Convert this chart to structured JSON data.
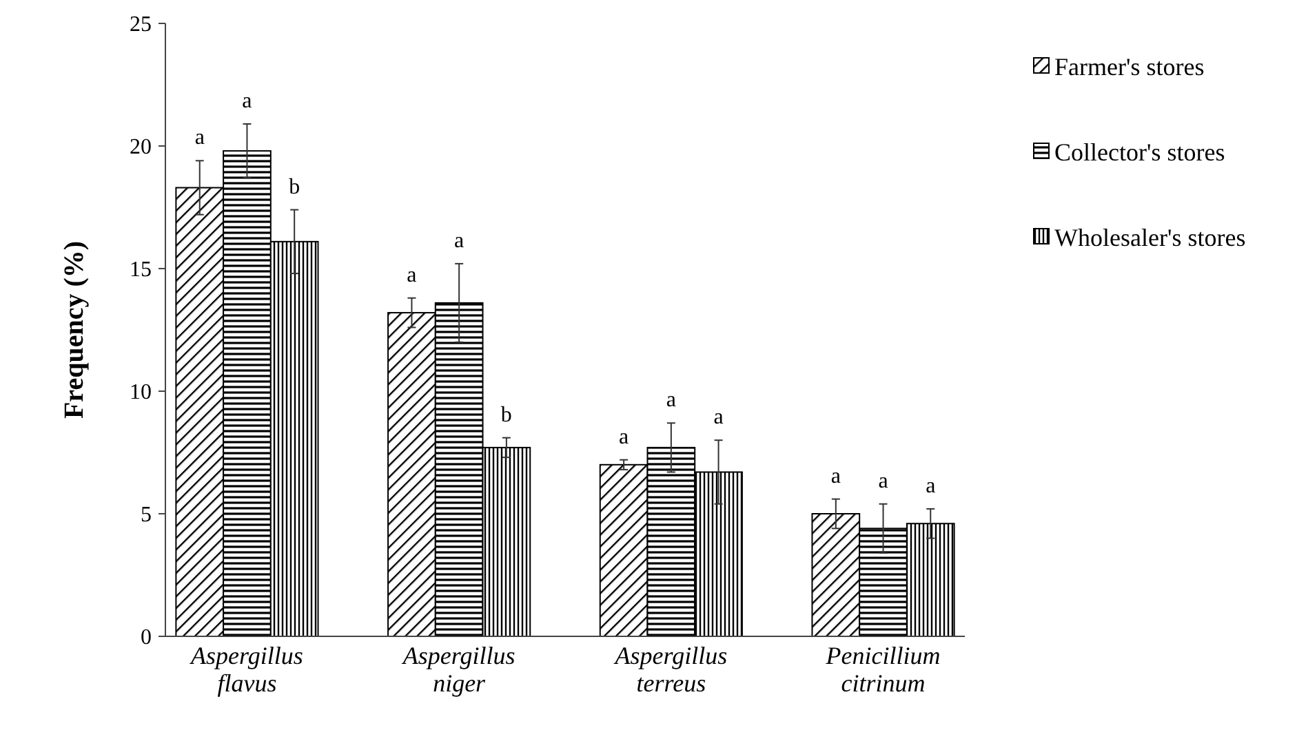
{
  "chart_data": {
    "type": "bar",
    "ylabel": "Frequency (%)",
    "categories": [
      "Aspergillus flavus",
      "Aspergillus niger",
      "Aspergillus terreus",
      "Penicillium citrinum"
    ],
    "series": [
      {
        "name": "Farmer's stores",
        "color": "#000000",
        "values": [
          18.3,
          13.2,
          7.0,
          5.0
        ],
        "errors": [
          1.1,
          0.6,
          0.2,
          0.6
        ]
      },
      {
        "name": "Collector's stores",
        "color": "#000000",
        "values": [
          19.8,
          13.6,
          7.7,
          4.4
        ],
        "errors": [
          1.1,
          1.6,
          1.0,
          1.0
        ]
      },
      {
        "name": "Wholesaler's stores",
        "color": "#000000",
        "values": [
          16.1,
          7.7,
          6.7,
          4.6
        ],
        "errors": [
          1.3,
          0.4,
          1.3,
          0.6
        ]
      }
    ],
    "annotations": [
      "a",
      "a",
      "b",
      "a",
      "a",
      "b",
      "a",
      "a",
      "a",
      "a",
      "a",
      "a"
    ],
    "ylim": [
      0,
      25
    ],
    "yticks": [
      0,
      5,
      10,
      15,
      20,
      25
    ],
    "grid": false,
    "legend": "top right"
  }
}
